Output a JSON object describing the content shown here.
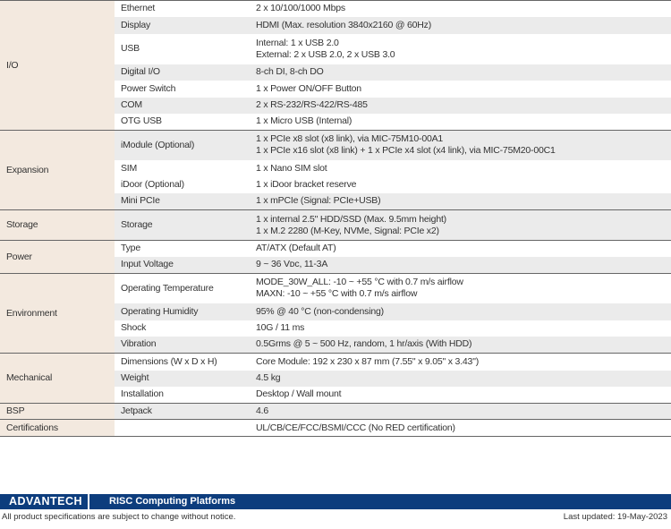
{
  "groups": [
    {
      "name": "I/O",
      "rows": [
        {
          "feature": "Ethernet",
          "value": [
            "2 x 10/100/1000 Mbps"
          ]
        },
        {
          "feature": "Display",
          "value": [
            "HDMI (Max. resolution 3840x2160 @ 60Hz)"
          ]
        },
        {
          "feature": "USB",
          "value": [
            "Internal: 1 x USB 2.0",
            "External: 2 x USB 2.0, 2 x USB 3.0"
          ]
        },
        {
          "feature": "Digital I/O",
          "value": [
            "8-ch DI, 8-ch DO"
          ]
        },
        {
          "feature": "Power Switch",
          "value": [
            "1 x Power ON/OFF Button"
          ]
        },
        {
          "feature": "COM",
          "value": [
            "2 x RS-232/RS-422/RS-485"
          ]
        },
        {
          "feature": "OTG USB",
          "value": [
            "1 x Micro USB (Internal)"
          ]
        }
      ]
    },
    {
      "name": "Expansion",
      "rows": [
        {
          "feature": "iModule (Optional)",
          "value": [
            "1 x PCIe x8 slot (x8 link), via MIC-75M10-00A1",
            "1 x PCIe x16 slot (x8 link) + 1 x PCIe x4 slot (x4 link), via MIC-75M20-00C1"
          ]
        },
        {
          "feature": "SIM",
          "value": [
            "1 x Nano SIM slot"
          ]
        },
        {
          "feature": "iDoor (Optional)",
          "value": [
            "1 x iDoor bracket reserve"
          ]
        },
        {
          "feature": "Mini PCIe",
          "value": [
            "1 x mPCIe (Signal: PCIe+USB)"
          ]
        }
      ]
    },
    {
      "name": "Storage",
      "rows": [
        {
          "feature": "Storage",
          "value": [
            "1 x internal 2.5\" HDD/SSD (Max. 9.5mm height)",
            "1 x M.2 2280 (M-Key, NVMe, Signal: PCIe x2)"
          ]
        }
      ]
    },
    {
      "name": "Power",
      "rows": [
        {
          "feature": "Type",
          "value": [
            "AT/ATX (Default AT)"
          ]
        },
        {
          "feature": "Input Voltage",
          "value": [
            "9 ~ 36 Vᴅᴄ, 11-3A"
          ]
        }
      ]
    },
    {
      "name": "Environment",
      "rows": [
        {
          "feature": "Operating Temperature",
          "value": [
            "MODE_30W_ALL: -10 ~ +55 °C with 0.7 m/s airflow",
            "MAXN: -10 ~ +55 °C with 0.7 m/s airflow"
          ]
        },
        {
          "feature": "Operating Humidity",
          "value": [
            "95% @ 40 °C (non-condensing)"
          ]
        },
        {
          "feature": "Shock",
          "value": [
            "10G / 11 ms"
          ]
        },
        {
          "feature": "Vibration",
          "value": [
            "0.5Grms @ 5 ~ 500 Hz, random, 1 hr/axis (With HDD)"
          ]
        }
      ]
    },
    {
      "name": "Mechanical",
      "rows": [
        {
          "feature": "Dimensions (W x D x H)",
          "value": [
            "Core Module: 192 x 230 x 87 mm (7.55\" x 9.05\" x 3.43\")"
          ]
        },
        {
          "feature": "Weight",
          "value": [
            "4.5 kg"
          ]
        },
        {
          "feature": "Installation",
          "value": [
            "Desktop / Wall mount"
          ]
        }
      ]
    },
    {
      "name": "BSP",
      "rows": [
        {
          "feature": "Jetpack",
          "value": [
            "4.6"
          ]
        }
      ]
    },
    {
      "name": "Certifications",
      "rows": [
        {
          "feature": "",
          "value": [
            "UL/CB/CE/FCC/BSMI/CCC (No RED certification)"
          ]
        }
      ]
    }
  ],
  "footer": {
    "logo": "ADVANTECH",
    "title": "RISC Computing Platforms",
    "disclaimer": "All product specifications are subject to change without notice.",
    "updated": "Last updated: 19-May-2023",
    "bar_color": "#0d3d7d"
  }
}
